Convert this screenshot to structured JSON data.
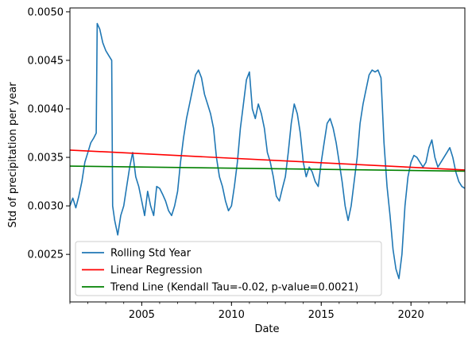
{
  "chart_data": {
    "type": "line",
    "title": "",
    "xlabel": "Date",
    "ylabel": "Std of precipitation per year",
    "xlim": [
      "2001-01-01",
      "2023-01-01"
    ],
    "ylim": [
      0.00201,
      0.00504
    ],
    "grid": false,
    "legend_position": "lower-left",
    "x_ticks_major": [
      "2005",
      "2010",
      "2015",
      "2020"
    ],
    "y_ticks": [
      "0.0025",
      "0.0030",
      "0.0035",
      "0.0040",
      "0.0045",
      "0.0050"
    ],
    "series": [
      {
        "name": "Rolling Std Year",
        "color": "#1f77b4",
        "x": [
          "2001-01-01",
          "2001-03-01",
          "2001-05-01",
          "2001-07-01",
          "2001-09-01",
          "2001-11-01",
          "2002-01-01",
          "2002-03-01",
          "2002-05-01",
          "2002-06-20",
          "2002-07-10",
          "2002-09-01",
          "2002-11-01",
          "2003-01-01",
          "2003-03-01",
          "2003-05-01",
          "2003-05-20",
          "2003-07-01",
          "2003-09-01",
          "2003-11-01",
          "2004-01-01",
          "2004-03-01",
          "2004-05-01",
          "2004-07-01",
          "2004-09-01",
          "2004-11-01",
          "2005-01-01",
          "2005-03-01",
          "2005-05-01",
          "2005-07-01",
          "2005-09-01",
          "2005-11-01",
          "2006-01-01",
          "2006-03-01",
          "2006-05-01",
          "2006-07-01",
          "2006-09-01",
          "2006-11-01",
          "2007-01-01",
          "2007-03-01",
          "2007-05-01",
          "2007-07-01",
          "2007-09-01",
          "2007-11-01",
          "2008-01-01",
          "2008-03-01",
          "2008-05-01",
          "2008-07-01",
          "2008-09-01",
          "2008-11-01",
          "2009-01-01",
          "2009-03-01",
          "2009-05-01",
          "2009-07-01",
          "2009-09-01",
          "2009-11-01",
          "2010-01-01",
          "2010-03-01",
          "2010-05-01",
          "2010-07-01",
          "2010-09-01",
          "2010-11-01",
          "2011-01-01",
          "2011-03-01",
          "2011-05-01",
          "2011-07-01",
          "2011-09-01",
          "2011-11-01",
          "2012-01-01",
          "2012-03-01",
          "2012-05-01",
          "2012-07-01",
          "2012-09-01",
          "2012-11-01",
          "2013-01-01",
          "2013-03-01",
          "2013-05-01",
          "2013-07-01",
          "2013-09-01",
          "2013-11-01",
          "2014-01-01",
          "2014-03-01",
          "2014-05-01",
          "2014-07-01",
          "2014-09-01",
          "2014-11-01",
          "2015-01-01",
          "2015-03-01",
          "2015-05-01",
          "2015-07-01",
          "2015-09-01",
          "2015-11-01",
          "2016-01-01",
          "2016-03-01",
          "2016-05-01",
          "2016-07-01",
          "2016-09-01",
          "2016-11-01",
          "2017-01-01",
          "2017-03-01",
          "2017-05-01",
          "2017-07-01",
          "2017-09-01",
          "2017-11-01",
          "2018-01-01",
          "2018-03-01",
          "2018-05-01",
          "2018-07-01",
          "2018-09-01",
          "2018-11-01",
          "2019-01-01",
          "2019-03-01",
          "2019-05-01",
          "2019-07-01",
          "2019-09-01",
          "2019-11-01",
          "2020-01-01",
          "2020-03-01",
          "2020-05-01",
          "2020-07-01",
          "2020-09-01",
          "2020-11-01",
          "2021-01-01",
          "2021-03-01",
          "2021-05-01",
          "2021-07-01",
          "2021-09-01",
          "2021-11-01",
          "2022-01-01",
          "2022-03-01",
          "2022-05-01",
          "2022-07-01",
          "2022-09-01",
          "2022-11-01",
          "2023-01-01"
        ],
        "y": [
          0.003,
          0.00308,
          0.00298,
          0.0031,
          0.00325,
          0.00345,
          0.00355,
          0.00365,
          0.0037,
          0.00375,
          0.00488,
          0.00482,
          0.00468,
          0.0046,
          0.00455,
          0.0045,
          0.003,
          0.00285,
          0.0027,
          0.0029,
          0.003,
          0.0032,
          0.0034,
          0.00355,
          0.0033,
          0.0032,
          0.00305,
          0.0029,
          0.00315,
          0.003,
          0.0029,
          0.0032,
          0.00318,
          0.00312,
          0.00305,
          0.00295,
          0.0029,
          0.003,
          0.00315,
          0.00345,
          0.0037,
          0.0039,
          0.00405,
          0.0042,
          0.00435,
          0.0044,
          0.00432,
          0.00415,
          0.00405,
          0.00395,
          0.0038,
          0.0035,
          0.0033,
          0.0032,
          0.00305,
          0.00295,
          0.003,
          0.0032,
          0.00345,
          0.0038,
          0.00405,
          0.0043,
          0.00438,
          0.004,
          0.0039,
          0.00405,
          0.00395,
          0.0038,
          0.00355,
          0.00345,
          0.0033,
          0.0031,
          0.00305,
          0.00318,
          0.0033,
          0.00355,
          0.00385,
          0.00405,
          0.00395,
          0.00375,
          0.00345,
          0.0033,
          0.0034,
          0.00335,
          0.00325,
          0.0032,
          0.00345,
          0.00365,
          0.00385,
          0.0039,
          0.0038,
          0.00365,
          0.00345,
          0.00325,
          0.003,
          0.00285,
          0.003,
          0.00325,
          0.0035,
          0.00385,
          0.00405,
          0.0042,
          0.00435,
          0.0044,
          0.00438,
          0.0044,
          0.00432,
          0.00365,
          0.0032,
          0.0029,
          0.00255,
          0.00235,
          0.00225,
          0.0025,
          0.003,
          0.0033,
          0.00345,
          0.00352,
          0.0035,
          0.00345,
          0.0034,
          0.00345,
          0.0036,
          0.00368,
          0.0035,
          0.0034,
          0.00345,
          0.0035,
          0.00355,
          0.0036,
          0.0035,
          0.00335,
          0.00325,
          0.0032,
          0.00318
        ]
      },
      {
        "name": "Linear Regression",
        "color": "#ff0000",
        "x": [
          "2001-01-01",
          "2023-01-01"
        ],
        "y": [
          0.003575,
          0.00337
        ]
      },
      {
        "name": "Trend Line (Kendall Tau=-0.02, p-value=0.0021)",
        "color": "#008000",
        "x": [
          "2001-01-01",
          "2023-01-01"
        ],
        "y": [
          0.00341,
          0.003358
        ]
      }
    ]
  }
}
